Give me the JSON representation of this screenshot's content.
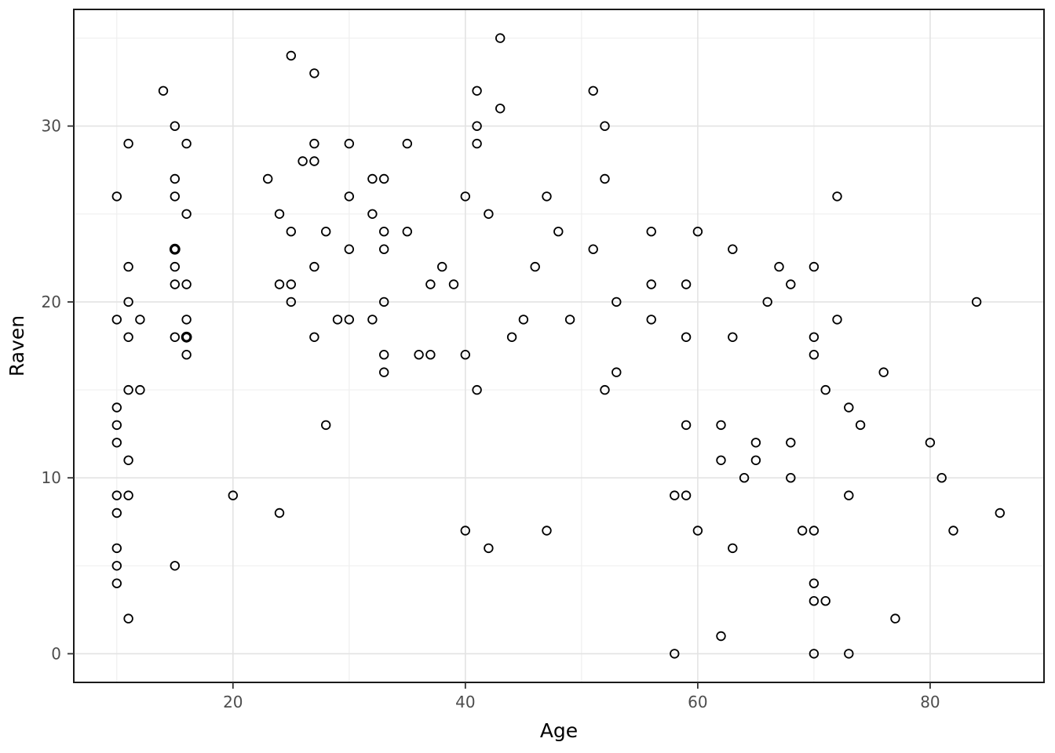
{
  "chart_data": {
    "type": "scatter",
    "title": "",
    "xlabel": "Age",
    "ylabel": "Raven",
    "x_ticks": [
      20,
      40,
      60,
      80
    ],
    "y_ticks": [
      0,
      10,
      20,
      30
    ],
    "x_minor_ticks": [
      10,
      30,
      50,
      70,
      90
    ],
    "y_minor_ticks": [
      5,
      15,
      25,
      35
    ],
    "xlim": [
      6.3,
      89.8
    ],
    "ylim": [
      -1.63,
      36.63
    ],
    "grid": "on",
    "legend": "none",
    "marker": "open-circle",
    "colors": {
      "point_stroke": "#000000",
      "major_grid": "#e3e3e3",
      "minor_grid": "#efefef",
      "panel_border": "#1a1a1a",
      "tick_mark": "#333333",
      "tick_label": "#4d4d4d",
      "axis_title": "#000000",
      "background": "#ffffff"
    },
    "points": [
      [
        10,
        26
      ],
      [
        10,
        19
      ],
      [
        10,
        14
      ],
      [
        10,
        13
      ],
      [
        10,
        12
      ],
      [
        10,
        9
      ],
      [
        10,
        8
      ],
      [
        10,
        6
      ],
      [
        10,
        5
      ],
      [
        10,
        4
      ],
      [
        11,
        29
      ],
      [
        11,
        22
      ],
      [
        11,
        20
      ],
      [
        11,
        18
      ],
      [
        11,
        15
      ],
      [
        11,
        11
      ],
      [
        11,
        9
      ],
      [
        11,
        2
      ],
      [
        12,
        19
      ],
      [
        12,
        15
      ],
      [
        14,
        32
      ],
      [
        15,
        30
      ],
      [
        15,
        27
      ],
      [
        15,
        26
      ],
      [
        15,
        23
      ],
      [
        15,
        23
      ],
      [
        15,
        22
      ],
      [
        15,
        21
      ],
      [
        15,
        18
      ],
      [
        15,
        5
      ],
      [
        16,
        29
      ],
      [
        16,
        25
      ],
      [
        16,
        21
      ],
      [
        16,
        19
      ],
      [
        16,
        18
      ],
      [
        16,
        18
      ],
      [
        16,
        17
      ],
      [
        20,
        9
      ],
      [
        23,
        27
      ],
      [
        24,
        25
      ],
      [
        24,
        21
      ],
      [
        24,
        8
      ],
      [
        25,
        34
      ],
      [
        25,
        24
      ],
      [
        25,
        21
      ],
      [
        25,
        20
      ],
      [
        26,
        28
      ],
      [
        27,
        33
      ],
      [
        27,
        29
      ],
      [
        27,
        28
      ],
      [
        27,
        22
      ],
      [
        27,
        18
      ],
      [
        28,
        24
      ],
      [
        28,
        13
      ],
      [
        29,
        19
      ],
      [
        30,
        29
      ],
      [
        30,
        26
      ],
      [
        30,
        23
      ],
      [
        30,
        19
      ],
      [
        32,
        27
      ],
      [
        32,
        25
      ],
      [
        32,
        19
      ],
      [
        33,
        27
      ],
      [
        33,
        24
      ],
      [
        33,
        23
      ],
      [
        33,
        20
      ],
      [
        33,
        17
      ],
      [
        33,
        16
      ],
      [
        35,
        29
      ],
      [
        35,
        24
      ],
      [
        36,
        17
      ],
      [
        37,
        21
      ],
      [
        37,
        17
      ],
      [
        38,
        22
      ],
      [
        39,
        21
      ],
      [
        40,
        26
      ],
      [
        40,
        17
      ],
      [
        40,
        7
      ],
      [
        41,
        32
      ],
      [
        41,
        30
      ],
      [
        41,
        29
      ],
      [
        41,
        15
      ],
      [
        42,
        25
      ],
      [
        42,
        6
      ],
      [
        43,
        35
      ],
      [
        43,
        31
      ],
      [
        44,
        18
      ],
      [
        45,
        19
      ],
      [
        46,
        22
      ],
      [
        47,
        26
      ],
      [
        47,
        7
      ],
      [
        48,
        24
      ],
      [
        49,
        19
      ],
      [
        51,
        32
      ],
      [
        51,
        23
      ],
      [
        52,
        30
      ],
      [
        52,
        27
      ],
      [
        52,
        15
      ],
      [
        53,
        20
      ],
      [
        53,
        16
      ],
      [
        56,
        24
      ],
      [
        56,
        21
      ],
      [
        56,
        19
      ],
      [
        58,
        9
      ],
      [
        58,
        0
      ],
      [
        59,
        21
      ],
      [
        59,
        18
      ],
      [
        59,
        13
      ],
      [
        59,
        9
      ],
      [
        60,
        24
      ],
      [
        60,
        7
      ],
      [
        62,
        13
      ],
      [
        62,
        11
      ],
      [
        62,
        1
      ],
      [
        63,
        23
      ],
      [
        63,
        18
      ],
      [
        63,
        6
      ],
      [
        64,
        10
      ],
      [
        65,
        12
      ],
      [
        65,
        11
      ],
      [
        66,
        20
      ],
      [
        67,
        22
      ],
      [
        68,
        21
      ],
      [
        68,
        12
      ],
      [
        68,
        10
      ],
      [
        69,
        7
      ],
      [
        70,
        22
      ],
      [
        70,
        18
      ],
      [
        70,
        17
      ],
      [
        70,
        7
      ],
      [
        70,
        4
      ],
      [
        70,
        3
      ],
      [
        70,
        0
      ],
      [
        71,
        15
      ],
      [
        71,
        3
      ],
      [
        72,
        26
      ],
      [
        72,
        19
      ],
      [
        73,
        14
      ],
      [
        73,
        9
      ],
      [
        73,
        0
      ],
      [
        74,
        13
      ],
      [
        76,
        16
      ],
      [
        77,
        2
      ],
      [
        80,
        12
      ],
      [
        81,
        10
      ],
      [
        82,
        7
      ],
      [
        84,
        20
      ],
      [
        86,
        8
      ]
    ]
  }
}
